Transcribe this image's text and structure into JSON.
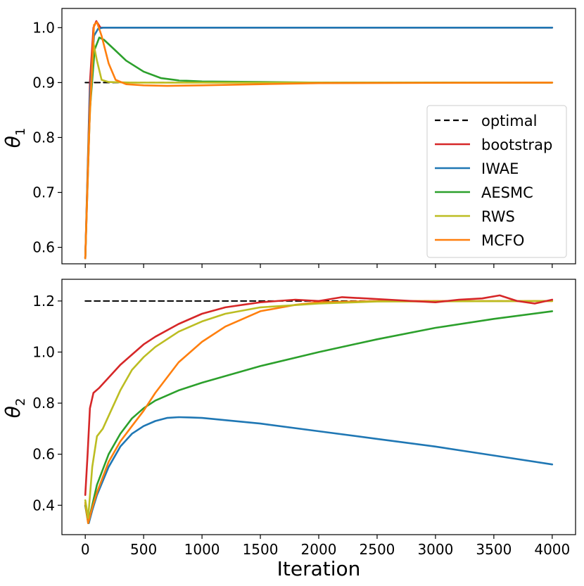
{
  "chart_data": [
    {
      "type": "line",
      "panel": "top",
      "ylabel": "θ1",
      "xlabel": "",
      "xlim": [
        -200,
        4200
      ],
      "ylim": [
        0.57,
        1.035
      ],
      "xticks": [
        0,
        500,
        1000,
        1500,
        2000,
        2500,
        3000,
        3500,
        4000
      ],
      "yticks": [
        0.6,
        0.7,
        0.8,
        0.9,
        1.0
      ],
      "ytick_labels": [
        "0.6",
        "0.7",
        "0.8",
        "0.9",
        "1.0"
      ],
      "show_xtick_labels": false,
      "legend_position": "center-right",
      "series": [
        {
          "key": "optimal",
          "name": "optimal",
          "color": "#000000",
          "dashed": true,
          "points": [
            [
              0,
              0.9
            ],
            [
              4000,
              0.9
            ]
          ]
        },
        {
          "key": "bootstrap",
          "name": "bootstrap",
          "color": "#d62728",
          "points": [
            [
              0,
              0.58
            ],
            [
              40,
              0.9
            ],
            [
              70,
              1.0
            ],
            [
              95,
              1.012
            ],
            [
              130,
              1.0
            ],
            [
              200,
              1.0
            ],
            [
              4000,
              1.0
            ]
          ]
        },
        {
          "key": "iwae",
          "name": "IWAE",
          "color": "#1f77b4",
          "points": [
            [
              0,
              0.58
            ],
            [
              40,
              0.88
            ],
            [
              75,
              0.985
            ],
            [
              110,
              0.998
            ],
            [
              150,
              1.0
            ],
            [
              4000,
              1.0
            ]
          ]
        },
        {
          "key": "aesmc",
          "name": "AESMC",
          "color": "#2ca02c",
          "points": [
            [
              0,
              0.58
            ],
            [
              40,
              0.85
            ],
            [
              80,
              0.96
            ],
            [
              120,
              0.982
            ],
            [
              160,
              0.978
            ],
            [
              250,
              0.96
            ],
            [
              350,
              0.94
            ],
            [
              500,
              0.92
            ],
            [
              650,
              0.908
            ],
            [
              800,
              0.904
            ],
            [
              1000,
              0.902
            ],
            [
              1500,
              0.901
            ],
            [
              2000,
              0.9
            ],
            [
              4000,
              0.9
            ]
          ]
        },
        {
          "key": "rws",
          "name": "RWS",
          "color": "#bcbd22",
          "points": [
            [
              0,
              0.58
            ],
            [
              30,
              0.8
            ],
            [
              70,
              0.972
            ],
            [
              100,
              0.94
            ],
            [
              140,
              0.905
            ],
            [
              200,
              0.901
            ],
            [
              400,
              0.9
            ],
            [
              4000,
              0.9
            ]
          ]
        },
        {
          "key": "mcfo",
          "name": "MCFO",
          "color": "#ff7f0e",
          "points": [
            [
              0,
              0.58
            ],
            [
              40,
              0.85
            ],
            [
              75,
              1.005
            ],
            [
              100,
              1.01
            ],
            [
              140,
              0.985
            ],
            [
              200,
              0.935
            ],
            [
              260,
              0.905
            ],
            [
              350,
              0.897
            ],
            [
              500,
              0.895
            ],
            [
              700,
              0.894
            ],
            [
              1000,
              0.895
            ],
            [
              1500,
              0.897
            ],
            [
              2000,
              0.899
            ],
            [
              4000,
              0.9
            ]
          ]
        }
      ],
      "legend": [
        "optimal",
        "bootstrap",
        "IWAE",
        "AESMC",
        "RWS",
        "MCFO"
      ]
    },
    {
      "type": "line",
      "panel": "bottom",
      "ylabel": "θ2",
      "xlabel": "Iteration",
      "xlim": [
        -200,
        4200
      ],
      "ylim": [
        0.285,
        1.285
      ],
      "xticks": [
        0,
        500,
        1000,
        1500,
        2000,
        2500,
        3000,
        3500,
        4000
      ],
      "xtick_labels": [
        "0",
        "500",
        "1000",
        "1500",
        "2000",
        "2500",
        "3000",
        "3500",
        "4000"
      ],
      "yticks": [
        0.4,
        0.6,
        0.8,
        1.0,
        1.2
      ],
      "ytick_labels": [
        "0.4",
        "0.6",
        "0.8",
        "1.0",
        "1.2"
      ],
      "series": [
        {
          "key": "optimal",
          "name": "optimal",
          "color": "#000000",
          "dashed": true,
          "points": [
            [
              0,
              1.2
            ],
            [
              4000,
              1.2
            ]
          ]
        },
        {
          "key": "iwae",
          "name": "IWAE",
          "color": "#1f77b4",
          "points": [
            [
              0,
              0.4
            ],
            [
              30,
              0.33
            ],
            [
              60,
              0.38
            ],
            [
              100,
              0.44
            ],
            [
              200,
              0.55
            ],
            [
              300,
              0.63
            ],
            [
              400,
              0.68
            ],
            [
              500,
              0.71
            ],
            [
              600,
              0.73
            ],
            [
              700,
              0.742
            ],
            [
              800,
              0.745
            ],
            [
              900,
              0.744
            ],
            [
              1000,
              0.742
            ],
            [
              1500,
              0.72
            ],
            [
              2000,
              0.69
            ],
            [
              2500,
              0.66
            ],
            [
              3000,
              0.63
            ],
            [
              3500,
              0.595
            ],
            [
              4000,
              0.56
            ]
          ]
        },
        {
          "key": "aesmc",
          "name": "AESMC",
          "color": "#2ca02c",
          "points": [
            [
              0,
              0.4
            ],
            [
              25,
              0.33
            ],
            [
              60,
              0.4
            ],
            [
              100,
              0.48
            ],
            [
              200,
              0.6
            ],
            [
              300,
              0.68
            ],
            [
              400,
              0.74
            ],
            [
              500,
              0.78
            ],
            [
              600,
              0.81
            ],
            [
              800,
              0.85
            ],
            [
              1000,
              0.88
            ],
            [
              1500,
              0.945
            ],
            [
              2000,
              1.0
            ],
            [
              2500,
              1.05
            ],
            [
              3000,
              1.095
            ],
            [
              3500,
              1.13
            ],
            [
              4000,
              1.16
            ]
          ]
        },
        {
          "key": "mcfo",
          "name": "MCFO",
          "color": "#ff7f0e",
          "points": [
            [
              0,
              0.41
            ],
            [
              25,
              0.33
            ],
            [
              60,
              0.39
            ],
            [
              100,
              0.45
            ],
            [
              200,
              0.57
            ],
            [
              300,
              0.65
            ],
            [
              400,
              0.71
            ],
            [
              500,
              0.77
            ],
            [
              600,
              0.84
            ],
            [
              800,
              0.96
            ],
            [
              1000,
              1.04
            ],
            [
              1200,
              1.1
            ],
            [
              1500,
              1.16
            ],
            [
              1800,
              1.185
            ],
            [
              2000,
              1.195
            ],
            [
              2500,
              1.2
            ],
            [
              4000,
              1.2
            ]
          ]
        },
        {
          "key": "rws",
          "name": "RWS",
          "color": "#bcbd22",
          "points": [
            [
              0,
              0.42
            ],
            [
              25,
              0.35
            ],
            [
              60,
              0.55
            ],
            [
              100,
              0.67
            ],
            [
              150,
              0.7
            ],
            [
              200,
              0.75
            ],
            [
              300,
              0.85
            ],
            [
              400,
              0.93
            ],
            [
              500,
              0.98
            ],
            [
              600,
              1.02
            ],
            [
              800,
              1.08
            ],
            [
              1000,
              1.12
            ],
            [
              1200,
              1.15
            ],
            [
              1500,
              1.175
            ],
            [
              2000,
              1.19
            ],
            [
              2500,
              1.198
            ],
            [
              4000,
              1.2
            ]
          ]
        },
        {
          "key": "bootstrap",
          "name": "bootstrap",
          "color": "#d62728",
          "points": [
            [
              0,
              0.44
            ],
            [
              20,
              0.6
            ],
            [
              40,
              0.78
            ],
            [
              70,
              0.84
            ],
            [
              120,
              0.86
            ],
            [
              200,
              0.9
            ],
            [
              300,
              0.95
            ],
            [
              400,
              0.99
            ],
            [
              500,
              1.03
            ],
            [
              600,
              1.06
            ],
            [
              800,
              1.11
            ],
            [
              1000,
              1.15
            ],
            [
              1200,
              1.175
            ],
            [
              1500,
              1.195
            ],
            [
              1800,
              1.205
            ],
            [
              2000,
              1.2
            ],
            [
              2200,
              1.215
            ],
            [
              2400,
              1.21
            ],
            [
              2600,
              1.205
            ],
            [
              2800,
              1.2
            ],
            [
              3000,
              1.195
            ],
            [
              3200,
              1.205
            ],
            [
              3400,
              1.21
            ],
            [
              3550,
              1.222
            ],
            [
              3700,
              1.2
            ],
            [
              3850,
              1.19
            ],
            [
              4000,
              1.205
            ]
          ]
        }
      ]
    }
  ]
}
